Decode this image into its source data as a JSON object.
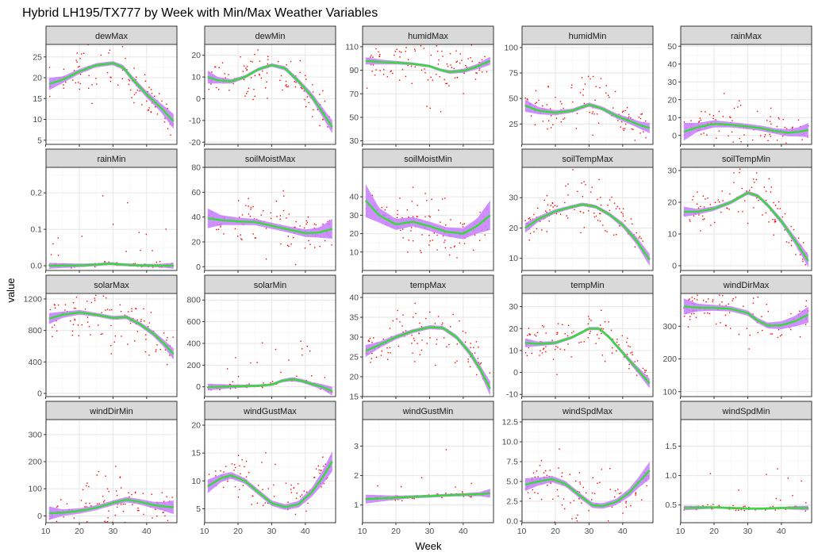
{
  "chart_data": {
    "type": "scatter",
    "title": "Hybrid LH195/TX777 by Week with Min/Max Weather Variables",
    "xlabel": "Week",
    "ylabel": "value",
    "xlim": [
      11,
      48
    ],
    "x_ticks": [
      10,
      20,
      30,
      40
    ],
    "grid": true,
    "point_color": "#ff0000",
    "smooth_color": "#33dd33",
    "ribbon_color": "#c77cff",
    "panels": [
      {
        "name": "dewMax",
        "ylim": [
          4,
          28
        ],
        "yticks": [
          5,
          10,
          15,
          20,
          25
        ],
        "smooth": [
          [
            11,
            18.5
          ],
          [
            15,
            19.5
          ],
          [
            20,
            21.5
          ],
          [
            25,
            23
          ],
          [
            30,
            23.5
          ],
          [
            33,
            22.5
          ],
          [
            36,
            19.5
          ],
          [
            40,
            16
          ],
          [
            44,
            13
          ],
          [
            48,
            9.5
          ]
        ],
        "band": [
          1.5,
          0.8,
          0.6,
          0.5,
          0.5,
          0.6,
          0.7,
          0.8,
          1.0,
          1.8
        ]
      },
      {
        "name": "dewMin",
        "ylim": [
          -21,
          25
        ],
        "yticks": [
          -20,
          -10,
          0,
          10,
          20
        ],
        "smooth": [
          [
            11,
            10
          ],
          [
            14,
            8.5
          ],
          [
            18,
            8
          ],
          [
            22,
            10
          ],
          [
            26,
            13.5
          ],
          [
            30,
            15.5
          ],
          [
            34,
            14
          ],
          [
            38,
            8
          ],
          [
            42,
            1
          ],
          [
            45,
            -6
          ],
          [
            48,
            -13
          ]
        ],
        "band": [
          3,
          1.5,
          1,
          0.8,
          0.8,
          0.8,
          1,
          1.2,
          1.6,
          2.2,
          3
        ]
      },
      {
        "name": "humidMax",
        "ylim": [
          27,
          112
        ],
        "yticks": [
          30,
          50,
          70,
          90,
          110
        ],
        "smooth": [
          [
            11,
            98
          ],
          [
            16,
            97
          ],
          [
            20,
            96.5
          ],
          [
            25,
            95.5
          ],
          [
            30,
            93.5
          ],
          [
            33,
            90.5
          ],
          [
            36,
            88.5
          ],
          [
            40,
            89.5
          ],
          [
            44,
            93
          ],
          [
            48,
            98
          ]
        ],
        "band": [
          3,
          2,
          1.5,
          1.2,
          1.2,
          1.3,
          1.5,
          1.8,
          2.2,
          3.5
        ]
      },
      {
        "name": "humidMin",
        "ylim": [
          5,
          103
        ],
        "yticks": [
          25,
          50,
          75,
          100
        ],
        "smooth": [
          [
            11,
            43
          ],
          [
            15,
            38
          ],
          [
            20,
            36
          ],
          [
            25,
            38
          ],
          [
            30,
            44
          ],
          [
            34,
            40
          ],
          [
            38,
            33
          ],
          [
            42,
            28
          ],
          [
            45,
            24
          ],
          [
            48,
            21
          ]
        ],
        "band": [
          6,
          3.5,
          2.5,
          2,
          2,
          2,
          2.5,
          3,
          3.5,
          5
        ]
      },
      {
        "name": "rainMax",
        "ylim": [
          -5,
          51
        ],
        "yticks": [
          0,
          10,
          20,
          30,
          40,
          50
        ],
        "smooth": [
          [
            11,
            2
          ],
          [
            15,
            4.5
          ],
          [
            20,
            6.5
          ],
          [
            25,
            6
          ],
          [
            30,
            5
          ],
          [
            34,
            4
          ],
          [
            38,
            2.5
          ],
          [
            42,
            1.5
          ],
          [
            45,
            2
          ],
          [
            48,
            3
          ]
        ],
        "band": [
          5,
          2.5,
          2,
          1.5,
          1.5,
          1.5,
          1.5,
          2,
          2.5,
          4
        ]
      },
      {
        "name": "rainMin",
        "ylim": [
          -0.013,
          0.27
        ],
        "yticks": [
          0.0,
          0.1,
          0.2
        ],
        "smooth": [
          [
            11,
            0
          ],
          [
            20,
            0.001
          ],
          [
            25,
            0.003
          ],
          [
            29,
            0.006
          ],
          [
            33,
            0.003
          ],
          [
            38,
            0.001
          ],
          [
            44,
            0.0005
          ],
          [
            48,
            0
          ]
        ],
        "band": [
          0.008,
          0.005,
          0.004,
          0.004,
          0.004,
          0.004,
          0.005,
          0.008
        ]
      },
      {
        "name": "soilMoistMax",
        "ylim": [
          -3,
          80
        ],
        "yticks": [
          0,
          20,
          40,
          60,
          80
        ],
        "smooth": [
          [
            11,
            39
          ],
          [
            15,
            37.5
          ],
          [
            20,
            36.5
          ],
          [
            25,
            36
          ],
          [
            30,
            33
          ],
          [
            35,
            30
          ],
          [
            40,
            27
          ],
          [
            44,
            27.5
          ],
          [
            48,
            30.5
          ]
        ],
        "band": [
          8,
          4,
          3,
          2.5,
          2.5,
          2.5,
          3,
          4,
          8
        ]
      },
      {
        "name": "soilMoistMin",
        "ylim": [
          0,
          56
        ],
        "yticks": [
          10,
          20,
          30,
          40
        ],
        "smooth": [
          [
            11,
            38
          ],
          [
            15,
            30
          ],
          [
            20,
            25
          ],
          [
            25,
            26.5
          ],
          [
            30,
            24
          ],
          [
            35,
            21
          ],
          [
            40,
            20
          ],
          [
            44,
            24
          ],
          [
            48,
            30
          ]
        ],
        "band": [
          9,
          4,
          3,
          2.5,
          2.5,
          2.5,
          3,
          4,
          8
        ]
      },
      {
        "name": "soilTempMax",
        "ylim": [
          6,
          40
        ],
        "yticks": [
          10,
          20,
          30
        ],
        "smooth": [
          [
            11,
            20
          ],
          [
            15,
            23
          ],
          [
            20,
            25.5
          ],
          [
            25,
            27
          ],
          [
            28,
            27.8
          ],
          [
            32,
            27
          ],
          [
            36,
            24.5
          ],
          [
            40,
            21
          ],
          [
            44,
            16
          ],
          [
            48,
            9.5
          ]
        ],
        "band": [
          1.6,
          0.9,
          0.7,
          0.6,
          0.6,
          0.6,
          0.7,
          0.9,
          1.2,
          2
        ]
      },
      {
        "name": "soilTempMin",
        "ylim": [
          -1.5,
          31
        ],
        "yticks": [
          0,
          10,
          20,
          30
        ],
        "smooth": [
          [
            11,
            17
          ],
          [
            15,
            17
          ],
          [
            20,
            18
          ],
          [
            25,
            20
          ],
          [
            30,
            23
          ],
          [
            33,
            22
          ],
          [
            36,
            19
          ],
          [
            40,
            14
          ],
          [
            44,
            8
          ],
          [
            48,
            1.5
          ]
        ],
        "band": [
          1.6,
          0.9,
          0.7,
          0.6,
          0.6,
          0.6,
          0.7,
          0.9,
          1.2,
          2
        ]
      },
      {
        "name": "solarMax",
        "ylim": [
          -40,
          1270
        ],
        "yticks": [
          0,
          400,
          800,
          1200
        ],
        "smooth": [
          [
            11,
            950
          ],
          [
            15,
            1000
          ],
          [
            20,
            1030
          ],
          [
            25,
            1000
          ],
          [
            30,
            960
          ],
          [
            34,
            970
          ],
          [
            38,
            880
          ],
          [
            42,
            760
          ],
          [
            45,
            640
          ],
          [
            48,
            500
          ]
        ],
        "band": [
          70,
          40,
          30,
          25,
          25,
          25,
          30,
          35,
          45,
          70
        ]
      },
      {
        "name": "solarMin",
        "ylim": [
          -90,
          860
        ],
        "yticks": [
          0,
          200,
          400,
          600,
          800
        ],
        "smooth": [
          [
            11,
            -2
          ],
          [
            20,
            5
          ],
          [
            26,
            10
          ],
          [
            30,
            20
          ],
          [
            33,
            55
          ],
          [
            36,
            70
          ],
          [
            39,
            55
          ],
          [
            42,
            25
          ],
          [
            45,
            0
          ],
          [
            48,
            -40
          ]
        ],
        "band": [
          30,
          15,
          12,
          12,
          15,
          18,
          18,
          18,
          25,
          40
        ]
      },
      {
        "name": "tempMax",
        "ylim": [
          15,
          41
        ],
        "yticks": [
          15,
          20,
          25,
          30,
          35,
          40
        ],
        "smooth": [
          [
            11,
            26.5
          ],
          [
            15,
            28
          ],
          [
            20,
            30
          ],
          [
            25,
            31.5
          ],
          [
            30,
            32.5
          ],
          [
            34,
            32.3
          ],
          [
            38,
            30
          ],
          [
            42,
            26
          ],
          [
            45,
            22
          ],
          [
            48,
            17
          ]
        ],
        "band": [
          1.5,
          0.8,
          0.6,
          0.5,
          0.5,
          0.5,
          0.6,
          0.8,
          1.0,
          1.8
        ]
      },
      {
        "name": "tempMin",
        "ylim": [
          -11,
          36
        ],
        "yticks": [
          -10,
          0,
          10,
          20,
          30
        ],
        "smooth": [
          [
            11,
            13.5
          ],
          [
            15,
            13
          ],
          [
            20,
            13.5
          ],
          [
            25,
            16
          ],
          [
            30,
            20
          ],
          [
            33,
            20
          ],
          [
            36,
            16
          ],
          [
            40,
            9
          ],
          [
            44,
            2
          ],
          [
            48,
            -5
          ]
        ],
        "band": [
          2,
          1,
          0.8,
          0.7,
          0.7,
          0.7,
          0.8,
          1,
          1.4,
          2.2
        ]
      },
      {
        "name": "windDirMax",
        "ylim": [
          85,
          400
        ],
        "yticks": [
          100,
          200,
          300
        ],
        "smooth": [
          [
            11,
            360
          ],
          [
            15,
            357
          ],
          [
            20,
            356
          ],
          [
            25,
            353
          ],
          [
            30,
            340
          ],
          [
            33,
            317
          ],
          [
            36,
            302
          ],
          [
            40,
            303
          ],
          [
            44,
            315
          ],
          [
            48,
            335
          ]
        ],
        "band": [
          25,
          12,
          9,
          8,
          8,
          8,
          9,
          12,
          16,
          25
        ]
      },
      {
        "name": "windDirMin",
        "ylim": [
          -25,
          355
        ],
        "yticks": [
          0,
          100,
          200,
          300
        ],
        "smooth": [
          [
            11,
            10
          ],
          [
            15,
            12
          ],
          [
            20,
            18
          ],
          [
            25,
            30
          ],
          [
            30,
            48
          ],
          [
            34,
            60
          ],
          [
            38,
            52
          ],
          [
            42,
            40
          ],
          [
            45,
            35
          ],
          [
            48,
            32
          ]
        ],
        "band": [
          25,
          12,
          10,
          9,
          9,
          10,
          10,
          12,
          16,
          25
        ]
      },
      {
        "name": "windGustMax",
        "ylim": [
          2.5,
          21
        ],
        "yticks": [
          5,
          10,
          15,
          20
        ],
        "smooth": [
          [
            11,
            9
          ],
          [
            15,
            10.5
          ],
          [
            18,
            11
          ],
          [
            22,
            10
          ],
          [
            26,
            8
          ],
          [
            30,
            6
          ],
          [
            34,
            5.3
          ],
          [
            38,
            5.8
          ],
          [
            42,
            8
          ],
          [
            45,
            10.5
          ],
          [
            48,
            13.5
          ]
        ],
        "band": [
          1.2,
          0.7,
          0.6,
          0.5,
          0.5,
          0.5,
          0.5,
          0.6,
          0.8,
          1.2,
          1.8
        ]
      },
      {
        "name": "windGustMin",
        "ylim": [
          0.4,
          3.9
        ],
        "yticks": [
          1,
          2,
          3
        ],
        "smooth": [
          [
            11,
            1.2
          ],
          [
            20,
            1.25
          ],
          [
            25,
            1.28
          ],
          [
            30,
            1.3
          ],
          [
            35,
            1.33
          ],
          [
            40,
            1.35
          ],
          [
            45,
            1.37
          ],
          [
            48,
            1.4
          ]
        ],
        "band": [
          0.15,
          0.07,
          0.05,
          0.05,
          0.05,
          0.05,
          0.07,
          0.15
        ]
      },
      {
        "name": "windSpdMax",
        "ylim": [
          -0.2,
          12.8
        ],
        "yticks": [
          0.0,
          2.5,
          5.0,
          7.5,
          10.0,
          12.5
        ],
        "smooth": [
          [
            11,
            4.6
          ],
          [
            15,
            5
          ],
          [
            19,
            5.3
          ],
          [
            23,
            4.7
          ],
          [
            27,
            3.3
          ],
          [
            31,
            2
          ],
          [
            34,
            1.9
          ],
          [
            38,
            2.4
          ],
          [
            42,
            3.6
          ],
          [
            45,
            5
          ],
          [
            48,
            6.4
          ]
        ],
        "band": [
          0.8,
          0.5,
          0.4,
          0.35,
          0.35,
          0.35,
          0.35,
          0.4,
          0.5,
          0.7,
          1.1
        ]
      },
      {
        "name": "windSpdMin",
        "ylim": [
          0.2,
          1.95
        ],
        "yticks": [
          0.5,
          1.0,
          1.5
        ],
        "smooth": [
          [
            11,
            0.45
          ],
          [
            20,
            0.46
          ],
          [
            30,
            0.44
          ],
          [
            35,
            0.44
          ],
          [
            40,
            0.45
          ],
          [
            48,
            0.45
          ]
        ],
        "band": [
          0.04,
          0.02,
          0.02,
          0.02,
          0.02,
          0.04
        ]
      }
    ]
  }
}
